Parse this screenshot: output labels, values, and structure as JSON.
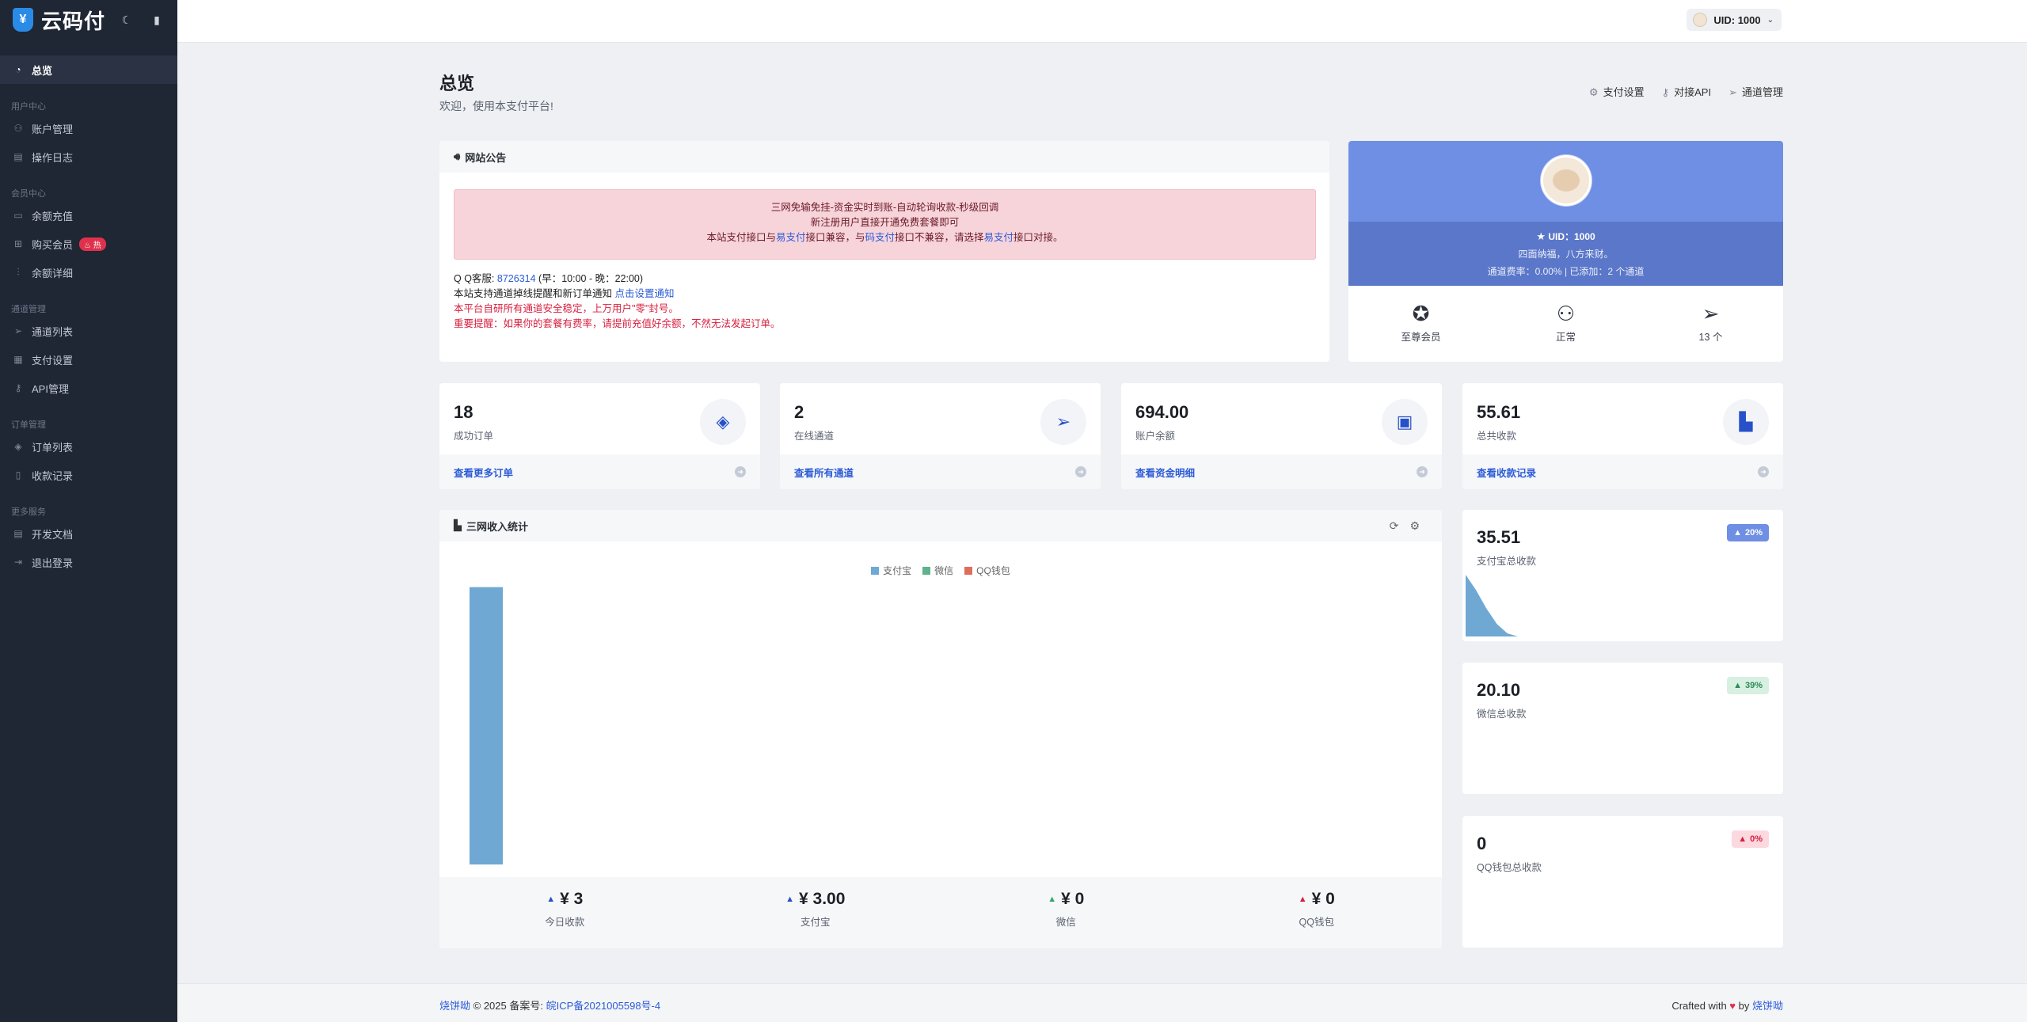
{
  "brand": {
    "name": "云码付"
  },
  "sidebar": {
    "items": [
      {
        "key": "overview",
        "label": "总览",
        "icon": "dashboard-icon"
      }
    ],
    "sections": [
      {
        "title": "用户中心",
        "items": [
          {
            "label": "账户管理",
            "icon": "user-icon"
          },
          {
            "label": "操作日志",
            "icon": "log-icon"
          }
        ]
      },
      {
        "title": "会员中心",
        "items": [
          {
            "label": "余额充值",
            "icon": "wallet-icon"
          },
          {
            "label": "购买会员",
            "icon": "gift-icon",
            "badge": "热"
          },
          {
            "label": "余额详细",
            "icon": "sliders-icon"
          }
        ]
      },
      {
        "title": "通道管理",
        "items": [
          {
            "label": "通道列表",
            "icon": "send-icon"
          },
          {
            "label": "支付设置",
            "icon": "grid-icon"
          },
          {
            "label": "API管理",
            "icon": "key-icon"
          }
        ]
      },
      {
        "title": "订单管理",
        "items": [
          {
            "label": "订单列表",
            "icon": "layers-icon"
          },
          {
            "label": "收款记录",
            "icon": "book-icon"
          }
        ]
      },
      {
        "title": "更多服务",
        "items": [
          {
            "label": "开发文档",
            "icon": "doc-icon"
          },
          {
            "label": "退出登录",
            "icon": "logout-icon"
          }
        ]
      }
    ]
  },
  "topbar": {
    "uid_label": "UID:  1000"
  },
  "page": {
    "title": "总览",
    "subtitle": "欢迎，使用本支付平台!",
    "quick": [
      "支付设置",
      "对接API",
      "通道管理"
    ]
  },
  "notice": {
    "title": "网站公告",
    "line1": "三网免输免挂-资金实时到账-自动轮询收款-秒级回调",
    "line2": "新注册用户直接开通免费套餐即可",
    "line3_a": "本站支付接口与",
    "line3_b": "易支付",
    "line3_c": "接口兼容，与",
    "line3_d": "码支付",
    "line3_e": "接口不兼容，请选择",
    "line3_f": "易支付",
    "line3_g": "接口对接。",
    "qq_prefix": "Q Q客服:",
    "qq_number": "8726314",
    "qq_hours": "(早：10:00 - 晚：22:00)",
    "support_text": "本站支持通道掉线提醒和新订单通知",
    "support_link": "点击设置通知",
    "red1": "本平台自研所有通道安全稳定，上万用户\"零\"封号。",
    "red2": "重要提醒：如果你的套餐有费率，请提前充值好余额，不然无法发起订单。"
  },
  "profile": {
    "uid": "UID：1000",
    "motto": "四面纳福，八方来财。",
    "rate_line": "通道费率：0.00%  |  已添加：2 个通道",
    "stats": [
      {
        "label": "至尊会员",
        "icon": "award-icon"
      },
      {
        "label": "正常",
        "icon": "user-check-icon"
      },
      {
        "label": "13 个",
        "icon": "send-icon"
      }
    ]
  },
  "stats": [
    {
      "value": "18",
      "label": "成功订单",
      "link": "查看更多订单",
      "icon": "diamond-icon"
    },
    {
      "value": "2",
      "label": "在线通道",
      "link": "查看所有通道",
      "icon": "send-icon"
    },
    {
      "value": "694.00",
      "label": "账户余额",
      "link": "查看资金明细",
      "icon": "wallet-icon"
    },
    {
      "value": "55.61",
      "label": "总共收款",
      "link": "查看收款记录",
      "icon": "bar-chart-icon"
    }
  ],
  "chart_card": {
    "title": "三网收入统计",
    "summary": [
      {
        "value": "¥ 3",
        "label": "今日收款",
        "trend": "up",
        "color": "#2750c9"
      },
      {
        "value": "¥ 3.00",
        "label": "支付宝",
        "trend": "up",
        "color": "#2750c9"
      },
      {
        "value": "¥ 0",
        "label": "微信",
        "trend": "up",
        "color": "#37a56b"
      },
      {
        "value": "¥ 0",
        "label": "QQ钱包",
        "trend": "up",
        "color": "#d8203f"
      }
    ]
  },
  "chart_data": {
    "type": "bar",
    "categories": [
      ""
    ],
    "series": [
      {
        "name": "支付宝",
        "values": [
          3
        ],
        "color": "#6fa8d3"
      },
      {
        "name": "微信",
        "values": [
          0
        ],
        "color": "#5fb38c"
      },
      {
        "name": "QQ钱包",
        "values": [
          0
        ],
        "color": "#de6e5a"
      }
    ],
    "ylim": [
      0,
      3.1
    ],
    "grid": false,
    "legend": "top-center"
  },
  "minis": [
    {
      "value": "35.51",
      "label": "支付宝总收款",
      "badge": "20%",
      "badge_bg": "#6e8fe3",
      "badge_fg": "#ffffff",
      "spark": [
        1,
        0.75,
        0.45,
        0.2,
        0.05,
        0
      ]
    },
    {
      "value": "20.10",
      "label": "微信总收款",
      "badge": "39%",
      "badge_bg": "#d7f0e1",
      "badge_fg": "#2e8b57"
    },
    {
      "value": "0",
      "label": "QQ钱包总收款",
      "badge": "0%",
      "badge_bg": "#fbd9df",
      "badge_fg": "#d8203f"
    }
  ],
  "footer": {
    "brand": "烧饼呦",
    "copy": " © 2025 备案号: ",
    "icp": "皖ICP备2021005598号-4",
    "crafted": "Crafted with ",
    "by": " by ",
    "author": "烧饼呦"
  }
}
